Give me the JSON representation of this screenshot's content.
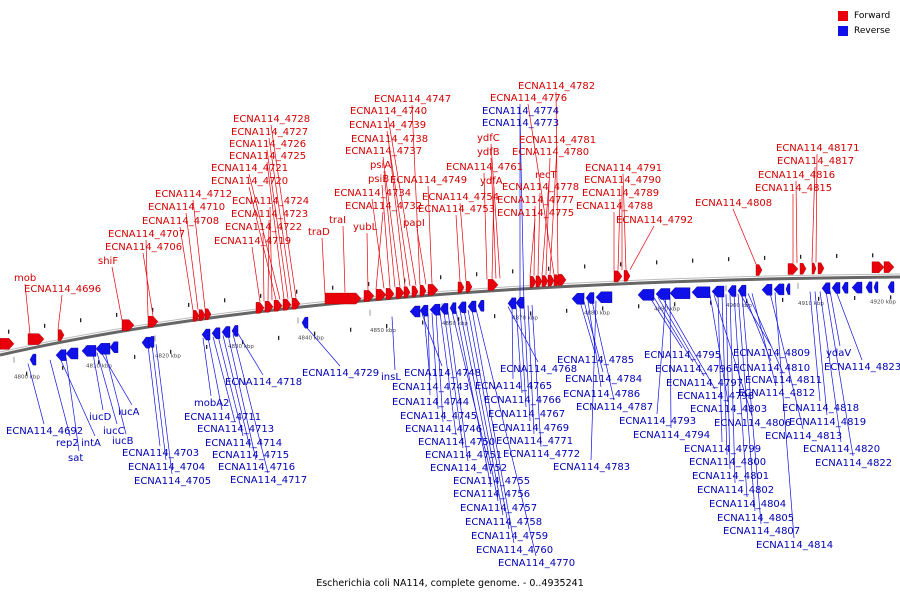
{
  "caption": "Escherichia coli NA114, complete genome. - 0..4935241",
  "legend": {
    "forward_label": "Forward",
    "reverse_label": "Reverse",
    "forward_color": "#e8000b",
    "reverse_color": "#1010e8"
  },
  "scale_ticks": [
    "4800 kbp",
    "4810 kbp",
    "4820 kbp",
    "4830 kbp",
    "4840 kbp",
    "4850 kbp",
    "4860 kbp",
    "4870 kbp",
    "4880 kbp",
    "4890 kbp",
    "4900 kbp",
    "4910 kbp",
    "4920 kbp"
  ],
  "forward_labels": [
    "mob",
    "ECNA114_4696",
    "shiF",
    "ECNA114_4706",
    "ECNA114_4707",
    "ECNA114_4708",
    "ECNA114_4710",
    "ECNA114_4712",
    "ECNA114_4719",
    "ECNA114_4722",
    "ECNA114_4723",
    "ECNA114_4724",
    "ECNA114_4720",
    "ECNA114_4721",
    "ECNA114_4725",
    "ECNA114_4726",
    "ECNA114_4727",
    "ECNA114_4728",
    "traD",
    "traI",
    "yubL",
    "ECNA114_4732",
    "ECNA114_4734",
    "psiB",
    "psiA",
    "ECNA114_4737",
    "ECNA114_4738",
    "ECNA114_4739",
    "ECNA114_4740",
    "ECNA114_4747",
    "papI",
    "ECNA114_4749",
    "ECNA114_4753",
    "ECNA114_4754",
    "ECNA114_4761",
    "ydfA",
    "ydfB",
    "ydfC",
    "ECNA114_4775",
    "ECNA114_4777",
    "ECNA114_4778",
    "recT",
    "ECNA114_4780",
    "ECNA114_4781",
    "ECNA114_4776",
    "ECNA114_4782",
    "ECNA114_4788",
    "ECNA114_4789",
    "ECNA114_4790",
    "ECNA114_4791",
    "ECNA114_4792",
    "ECNA114_4808",
    "ECNA114_4815",
    "ECNA114_4816",
    "ECNA114_4817",
    "ECNA114_48171"
  ],
  "reverse_labels": [
    "ECNA114_4692",
    "rep2",
    "intA",
    "sat",
    "iucD",
    "iucC",
    "iucA",
    "iucB",
    "ECNA114_4703",
    "ECNA114_4704",
    "ECNA114_4705",
    "mobA2",
    "ECNA114_4711",
    "ECNA114_4713",
    "ECNA114_4714",
    "ECNA114_4715",
    "ECNA114_4716",
    "ECNA114_4717",
    "ECNA114_4718",
    "ECNA114_4729",
    "insL",
    "ECNA114_4748",
    "ECNA114_4743",
    "ECNA114_4744",
    "ECNA114_4745",
    "ECNA114_4746",
    "ECNA114_4750",
    "ECNA114_4751",
    "ECNA114_4752",
    "ECNA114_4755",
    "ECNA114_4756",
    "ECNA114_4757",
    "ECNA114_4758",
    "ECNA114_4759",
    "ECNA114_4760",
    "ECNA114_4770",
    "ECNA114_4774",
    "ECNA114_4773",
    "ECNA114_4768",
    "ECNA114_4765",
    "ECNA114_4766",
    "ECNA114_4767",
    "ECNA114_4769",
    "ECNA114_4771",
    "ECNA114_4772",
    "ECNA114_4785",
    "ECNA114_4784",
    "ECNA114_4786",
    "ECNA114_4787",
    "ECNA114_4783",
    "ECNA114_4795",
    "ECNA114_4796",
    "ECNA114_4797",
    "ECNA114_4798",
    "ECNA114_4793",
    "ECNA114_4794",
    "ECNA114_4809",
    "ECNA114_4810",
    "ECNA114_4811",
    "ECNA114_4812",
    "ECNA114_4803",
    "ECNA114_4806",
    "ECNA114_4799",
    "ECNA114_4800",
    "ECNA114_4801",
    "ECNA114_4802",
    "ECNA114_4804",
    "ECNA114_4805",
    "ECNA114_4807",
    "ECNA114_4813",
    "ECNA114_4814",
    "ydaV",
    "ECNA114_4823",
    "ECNA114_4818",
    "ECNA114_4819",
    "ECNA114_4820",
    "ECNA114_4822"
  ]
}
